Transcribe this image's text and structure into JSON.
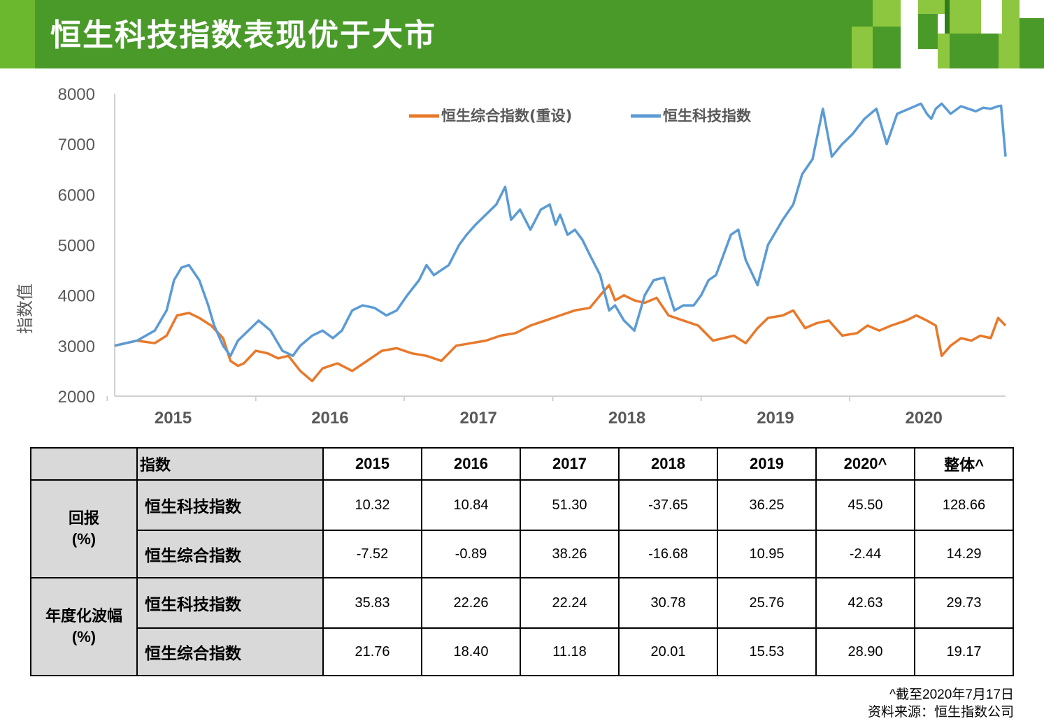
{
  "slide": {
    "title": "恒生科技指数表现优于大市",
    "colors": {
      "header_green": "#4a9a2a",
      "light_green": "#6bb82e",
      "dark_green": "#2e7d1a",
      "table_gray": "#d9d9d9"
    }
  },
  "chart_data": {
    "type": "line",
    "title": "",
    "ylabel": "指数值",
    "xlabel": "",
    "ylim": [
      2000,
      8000
    ],
    "yticks": [
      "2000",
      "3000",
      "4000",
      "5000",
      "6000",
      "7000",
      "8000"
    ],
    "xlim": [
      2014.55,
      2020.55
    ],
    "xtick_labels": [
      "2015",
      "2016",
      "2017",
      "2018",
      "2019",
      "2020"
    ],
    "legend_position": "top-center",
    "series": [
      {
        "name": "恒生综合指数(重设)",
        "color": "#e8792b",
        "x": [
          2014.55,
          2014.7,
          2014.82,
          2014.9,
          2014.97,
          2015.05,
          2015.12,
          2015.2,
          2015.28,
          2015.33,
          2015.38,
          2015.42,
          2015.5,
          2015.58,
          2015.65,
          2015.72,
          2015.8,
          2015.88,
          2015.95,
          2016.05,
          2016.15,
          2016.25,
          2016.35,
          2016.45,
          2016.55,
          2016.65,
          2016.75,
          2016.85,
          2016.95,
          2017.05,
          2017.15,
          2017.25,
          2017.35,
          2017.45,
          2017.55,
          2017.65,
          2017.75,
          2017.82,
          2017.88,
          2017.92,
          2017.98,
          2018.05,
          2018.12,
          2018.2,
          2018.28,
          2018.38,
          2018.48,
          2018.58,
          2018.65,
          2018.72,
          2018.8,
          2018.88,
          2018.95,
          2019.05,
          2019.12,
          2019.2,
          2019.28,
          2019.36,
          2019.45,
          2019.55,
          2019.62,
          2019.7,
          2019.78,
          2019.88,
          2019.95,
          2020.02,
          2020.08,
          2020.12,
          2020.18,
          2020.25,
          2020.32,
          2020.38,
          2020.45,
          2020.5,
          2020.55
        ],
        "values": [
          3000,
          3100,
          3050,
          3200,
          3600,
          3650,
          3550,
          3400,
          3150,
          2700,
          2600,
          2650,
          2900,
          2850,
          2750,
          2800,
          2500,
          2300,
          2550,
          2650,
          2500,
          2700,
          2900,
          2950,
          2850,
          2800,
          2700,
          3000,
          3050,
          3100,
          3200,
          3250,
          3400,
          3500,
          3600,
          3700,
          3750,
          4000,
          4200,
          3900,
          4000,
          3900,
          3850,
          3950,
          3600,
          3500,
          3400,
          3100,
          3150,
          3200,
          3050,
          3350,
          3550,
          3600,
          3700,
          3350,
          3450,
          3500,
          3200,
          3250,
          3400,
          3300,
          3400,
          3500,
          3600,
          3500,
          3400,
          2800,
          3000,
          3150,
          3100,
          3200,
          3150,
          3550,
          3400
        ]
      },
      {
        "name": "恒生科技指数",
        "color": "#5b9bd5",
        "x": [
          2014.55,
          2014.7,
          2014.82,
          2014.9,
          2014.95,
          2015.0,
          2015.05,
          2015.12,
          2015.18,
          2015.22,
          2015.28,
          2015.33,
          2015.38,
          2015.45,
          2015.52,
          2015.6,
          2015.68,
          2015.75,
          2015.8,
          2015.88,
          2015.95,
          2016.02,
          2016.08,
          2016.15,
          2016.22,
          2016.3,
          2016.38,
          2016.45,
          2016.52,
          2016.6,
          2016.65,
          2016.7,
          2016.75,
          2016.8,
          2016.87,
          2016.92,
          2016.98,
          2017.05,
          2017.12,
          2017.18,
          2017.22,
          2017.28,
          2017.35,
          2017.42,
          2017.48,
          2017.52,
          2017.55,
          2017.6,
          2017.65,
          2017.7,
          2017.75,
          2017.82,
          2017.88,
          2017.92,
          2017.98,
          2018.05,
          2018.12,
          2018.18,
          2018.25,
          2018.32,
          2018.38,
          2018.45,
          2018.5,
          2018.55,
          2018.6,
          2018.65,
          2018.7,
          2018.75,
          2018.8,
          2018.88,
          2018.95,
          2019.05,
          2019.12,
          2019.18,
          2019.25,
          2019.32,
          2019.38,
          2019.45,
          2019.52,
          2019.6,
          2019.68,
          2019.75,
          2019.82,
          2019.9,
          2019.98,
          2020.02,
          2020.05,
          2020.08,
          2020.12,
          2020.18,
          2020.25,
          2020.3,
          2020.35,
          2020.4,
          2020.45,
          2020.5,
          2020.52,
          2020.55
        ],
        "values": [
          3000,
          3100,
          3300,
          3700,
          4300,
          4550,
          4600,
          4300,
          3800,
          3400,
          3000,
          2800,
          3100,
          3300,
          3500,
          3300,
          2900,
          2800,
          3000,
          3200,
          3300,
          3150,
          3300,
          3700,
          3800,
          3750,
          3600,
          3700,
          4000,
          4300,
          4600,
          4400,
          4500,
          4600,
          5000,
          5200,
          5400,
          5600,
          5800,
          6150,
          5500,
          5700,
          5300,
          5700,
          5800,
          5400,
          5600,
          5200,
          5300,
          5100,
          4800,
          4400,
          3700,
          3800,
          3500,
          3300,
          4000,
          4300,
          4350,
          3700,
          3800,
          3800,
          4000,
          4300,
          4400,
          4800,
          5200,
          5300,
          4700,
          4200,
          5000,
          5500,
          5800,
          6400,
          6700,
          7700,
          6750,
          7000,
          7200,
          7500,
          7700,
          7000,
          7600,
          7700,
          7800,
          7600,
          7500,
          7700,
          7800,
          7600,
          7750,
          7700,
          7650,
          7720,
          7700,
          7750,
          7760,
          6750
        ]
      }
    ]
  },
  "table": {
    "header": {
      "blank": "",
      "index_label": "指数",
      "years": [
        "2015",
        "2016",
        "2017",
        "2018",
        "2019",
        "2020^",
        "整体^"
      ]
    },
    "groups": [
      {
        "label": "回报",
        "unit": "(%)",
        "rows": [
          {
            "name": "恒生科技指数",
            "values": [
              "10.32",
              "10.84",
              "51.30",
              "-37.65",
              "36.25",
              "45.50",
              "128.66"
            ]
          },
          {
            "name": "恒生综合指数",
            "values": [
              "-7.52",
              "-0.89",
              "38.26",
              "-16.68",
              "10.95",
              "-2.44",
              "14.29"
            ]
          }
        ]
      },
      {
        "label": "年度化波幅",
        "unit": "(%)",
        "rows": [
          {
            "name": "恒生科技指数",
            "values": [
              "35.83",
              "22.26",
              "22.24",
              "30.78",
              "25.76",
              "42.63",
              "29.73"
            ]
          },
          {
            "name": "恒生综合指数",
            "values": [
              "21.76",
              "18.40",
              "11.18",
              "20.01",
              "15.53",
              "28.90",
              "19.17"
            ]
          }
        ]
      }
    ]
  },
  "footnote": {
    "asof": "^截至2020年7月17日",
    "source": "资料来源：恒生指数公司"
  }
}
